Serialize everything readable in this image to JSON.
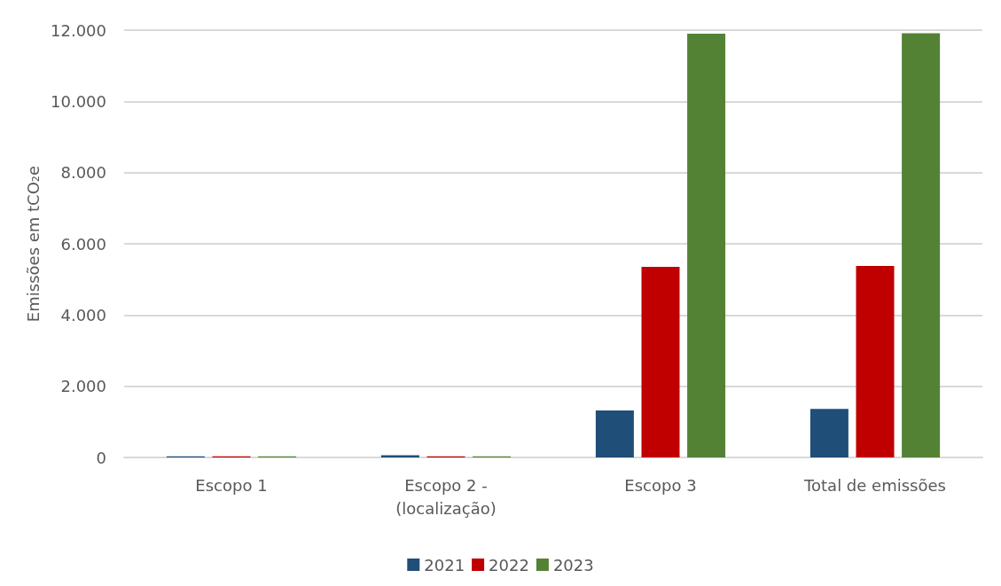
{
  "chart_data": {
    "type": "bar",
    "ylabel": "Emissões em tCO₂e",
    "categories": [
      "Escopo 1",
      "Escopo 2 -\n(localização)",
      "Escopo 3",
      "Total de emissões"
    ],
    "series": [
      {
        "name": "2021",
        "color": "#1f4e79",
        "values": [
          30,
          60,
          1320,
          1360
        ]
      },
      {
        "name": "2022",
        "color": "#c00000",
        "values": [
          30,
          30,
          5350,
          5380
        ]
      },
      {
        "name": "2023",
        "color": "#548235",
        "values": [
          30,
          30,
          11900,
          11910
        ]
      }
    ],
    "ylim": [
      0,
      12000
    ],
    "yticks": [
      {
        "value": 0,
        "label": "0"
      },
      {
        "value": 2000,
        "label": "2.000"
      },
      {
        "value": 4000,
        "label": "4.000"
      },
      {
        "value": 6000,
        "label": "6.000"
      },
      {
        "value": 8000,
        "label": "8.000"
      },
      {
        "value": 10000,
        "label": "10.000"
      },
      {
        "value": 12000,
        "label": "12.000"
      }
    ],
    "grid": "y",
    "legend": "bottom"
  }
}
